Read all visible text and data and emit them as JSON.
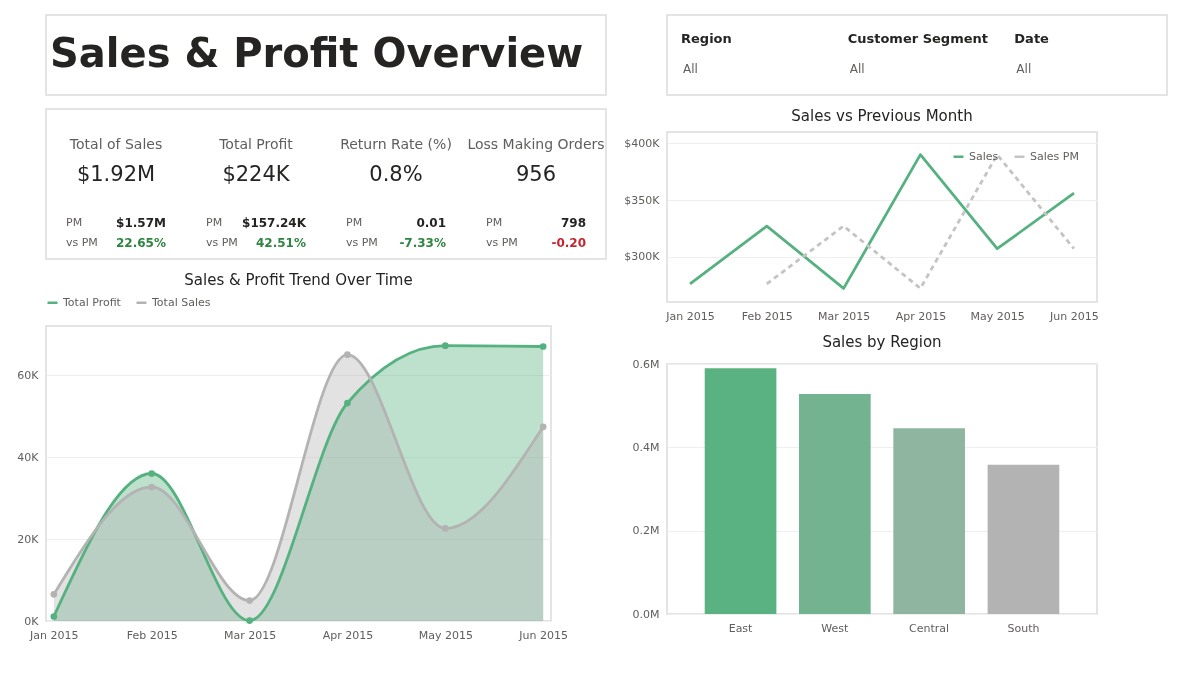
{
  "chart_data": [
    {
      "type": "other",
      "title": "Sales & Profit Overview"
    },
    {
      "type": "other",
      "categories": [
        "Region",
        "Customer Segment",
        "Date"
      ],
      "annotations": [
        "All",
        "All",
        "All"
      ]
    },
    {
      "type": "other",
      "categories": [
        "Total of Sales",
        "Total Profit",
        "Return Rate (%)",
        "Loss Making Orders"
      ],
      "annotations": [
        "$1.92M",
        "PM",
        "$1.57M",
        "vs PM",
        "22.65%",
        "$224K",
        "PM",
        "$157.24K",
        "vs PM",
        "42.51%",
        "0.8%",
        "PM",
        "0.01",
        "vs PM",
        "-7.33%",
        "956",
        "PM",
        "798",
        "vs PM",
        "-0.20"
      ],
      "colors": [
        "#252423",
        "#605e5c",
        "#252423",
        "#605e5c",
        "#2e8540",
        "#252423",
        "#605e5c",
        "#252423",
        "#605e5c",
        "#2e8540",
        "#252423",
        "#605e5c",
        "#252423",
        "#605e5c",
        "#2e8540",
        "#252423",
        "#605e5c",
        "#252423",
        "#605e5c",
        "#c4262e"
      ]
    },
    {
      "type": "line",
      "title": "Sales vs Previous Month",
      "categories": [
        "Jan 2015",
        "Feb 2015",
        "Mar 2015",
        "Apr 2015",
        "May 2015",
        "Jun 2015"
      ],
      "series": [
        {
          "name": "Sales",
          "color": "#55b17f",
          "line_style": "solid",
          "values": [
            276000,
            327000,
            272000,
            390000,
            307000,
            356000
          ]
        },
        {
          "name": "Sales PM",
          "color": "#c4c4c4",
          "line_style": "dashed",
          "values": [
            null,
            276000,
            327000,
            272000,
            390000,
            307000
          ]
        }
      ],
      "ylim": [
        260000,
        410000
      ],
      "yticks": [
        {
          "value": 300000,
          "label": "$300K"
        },
        {
          "value": 350000,
          "label": "$350K"
        },
        {
          "value": 400000,
          "label": "$400K"
        }
      ],
      "grid": "y",
      "legend": "top right"
    },
    {
      "type": "area",
      "title": "Sales & Profit Trend Over Time",
      "categories": [
        "Jan 2015",
        "Feb 2015",
        "Mar 2015",
        "Apr 2015",
        "May 2015",
        "Jun 2015"
      ],
      "series": [
        {
          "name": "Total Profit",
          "color": "#55b17f",
          "values": [
            1100,
            36000,
            100,
            53200,
            67200,
            67000
          ]
        },
        {
          "name": "Total Sales",
          "color": "#b3b3b3",
          "values": [
            6500,
            32700,
            5000,
            65000,
            22600,
            47400
          ]
        }
      ],
      "ylim": [
        0,
        72000
      ],
      "yticks": [
        {
          "value": 0,
          "label": "0K"
        },
        {
          "value": 20000,
          "label": "20K"
        },
        {
          "value": 40000,
          "label": "40K"
        },
        {
          "value": 60000,
          "label": "60K"
        }
      ],
      "grid": "y",
      "legend": "top",
      "marker": "circle"
    },
    {
      "type": "bar",
      "title": "Sales by Region",
      "categories": [
        "East",
        "West",
        "Central",
        "South"
      ],
      "values": [
        590000,
        528000,
        446000,
        358000
      ],
      "colors": [
        "#5ab282",
        "#73b390",
        "#8fb5a0",
        "#b3b3b3"
      ],
      "ylim": [
        0,
        600000
      ],
      "yticks": [
        {
          "value": 0,
          "label": "0.0M"
        },
        {
          "value": 200000,
          "label": "0.2M"
        },
        {
          "value": 400000,
          "label": "0.4M"
        },
        {
          "value": 600000,
          "label": "0.6M"
        }
      ],
      "grid": "y"
    }
  ]
}
